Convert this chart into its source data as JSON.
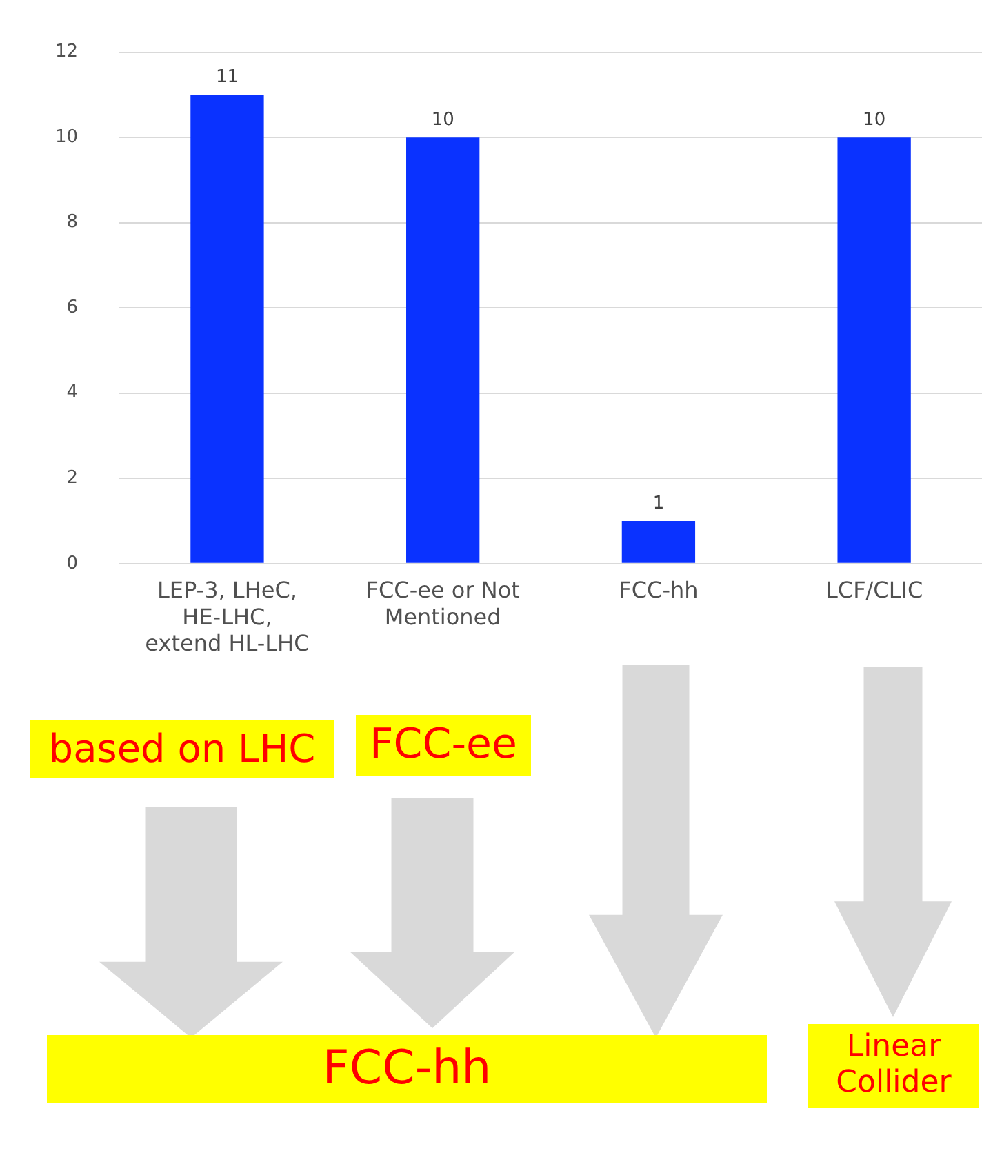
{
  "chart_data": {
    "type": "bar",
    "categories": [
      "LEP-3, LHeC, HE-LHC, extend HL-LHC",
      "FCC-ee or Not Mentioned",
      "FCC-hh",
      "LCF/CLIC"
    ],
    "values": [
      11,
      10,
      1,
      10
    ],
    "color": "#0a32ff",
    "ylim": [
      0,
      12
    ],
    "yticks": [
      0,
      2,
      4,
      6,
      8,
      10,
      12
    ],
    "grid": "y",
    "data_labels": true,
    "annotations": [
      "based on LHC",
      "FCC-ee",
      "FCC-hh",
      "Linear Collider"
    ]
  }
}
